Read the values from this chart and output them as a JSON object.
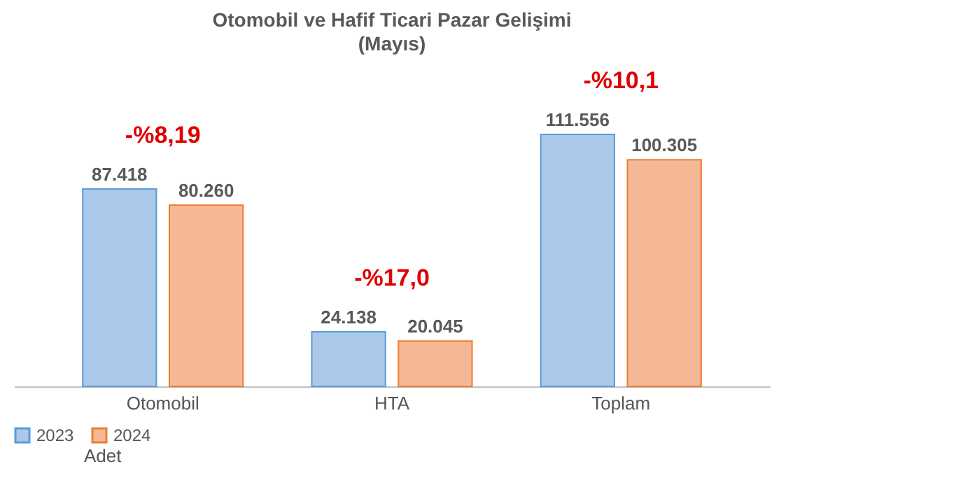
{
  "chart_data": {
    "type": "bar",
    "title": "Otomobil ve Hafif Ticari Pazar Gelişimi",
    "subtitle": "(Mayıs)",
    "categories": [
      "Otomobil",
      "HTA",
      "Toplam"
    ],
    "series": [
      {
        "name": "2023",
        "color": "#a9c8ea",
        "values": [
          87418,
          24138,
          111556
        ],
        "value_labels": [
          "87.418",
          "24.138",
          "111.556"
        ]
      },
      {
        "name": "2024",
        "color": "#f5b896",
        "values": [
          80260,
          20045,
          100305
        ],
        "value_labels": [
          "80.260",
          "20.045",
          "100.305"
        ]
      }
    ],
    "legend": "bottom",
    "annotations": [
      "-%8,19",
      "-%17,0",
      "-%10,1",
      "Adet"
    ]
  }
}
